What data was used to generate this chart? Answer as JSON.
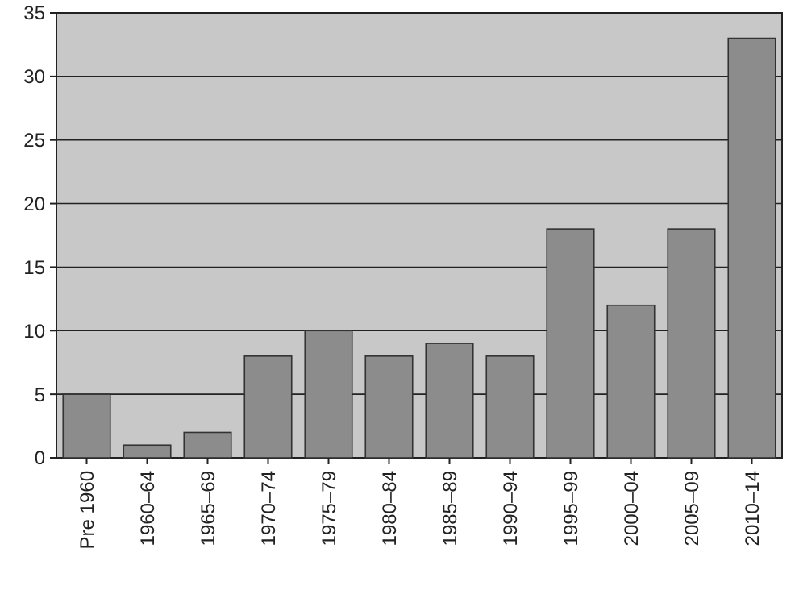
{
  "chart_data": {
    "type": "bar",
    "categories": [
      "Pre 1960",
      "1960–64",
      "1965–69",
      "1970–74",
      "1975–79",
      "1980–84",
      "1985–89",
      "1990–94",
      "1995–99",
      "2000–04",
      "2005–09",
      "2010–14"
    ],
    "values": [
      5,
      1,
      2,
      8,
      10,
      8,
      9,
      8,
      18,
      12,
      18,
      33
    ],
    "color": "#8c8c8c",
    "ylim": [
      0,
      35
    ],
    "yticks": [
      0,
      5,
      10,
      15,
      20,
      25,
      30,
      35
    ],
    "grid": "y"
  }
}
